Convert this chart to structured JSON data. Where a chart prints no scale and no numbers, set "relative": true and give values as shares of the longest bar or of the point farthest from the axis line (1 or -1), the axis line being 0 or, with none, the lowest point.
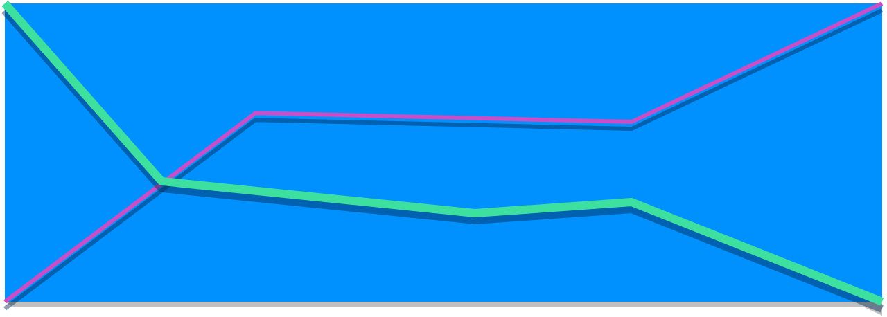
{
  "chart_data": {
    "type": "line",
    "relative": true,
    "categories": [
      null,
      null,
      null,
      null,
      null,
      null,
      null,
      null,
      null,
      null,
      null,
      null,
      null,
      null,
      null,
      null,
      null,
      null,
      null,
      null,
      null,
      null,
      null,
      null,
      null,
      null,
      null,
      null,
      null
    ],
    "tick_labels": false,
    "grid": false,
    "legend": false,
    "marker": "none",
    "line_style": "solid",
    "series": [
      {
        "color": "#3ee0a0",
        "values": [
          1,
          null,
          null,
          null,
          null,
          0.404,
          null,
          null,
          null,
          null,
          null,
          null,
          null,
          null,
          null,
          0.297,
          null,
          null,
          null,
          null,
          0.334,
          null,
          null,
          null,
          null,
          null,
          null,
          null,
          0
        ]
      },
      {
        "color": "#c84fc8",
        "values": [
          0,
          null,
          null,
          null,
          null,
          null,
          null,
          null,
          0.633,
          null,
          null,
          null,
          null,
          null,
          null,
          null,
          null,
          null,
          null,
          null,
          0.603,
          null,
          null,
          null,
          null,
          null,
          null,
          null,
          1
        ]
      }
    ]
  }
}
